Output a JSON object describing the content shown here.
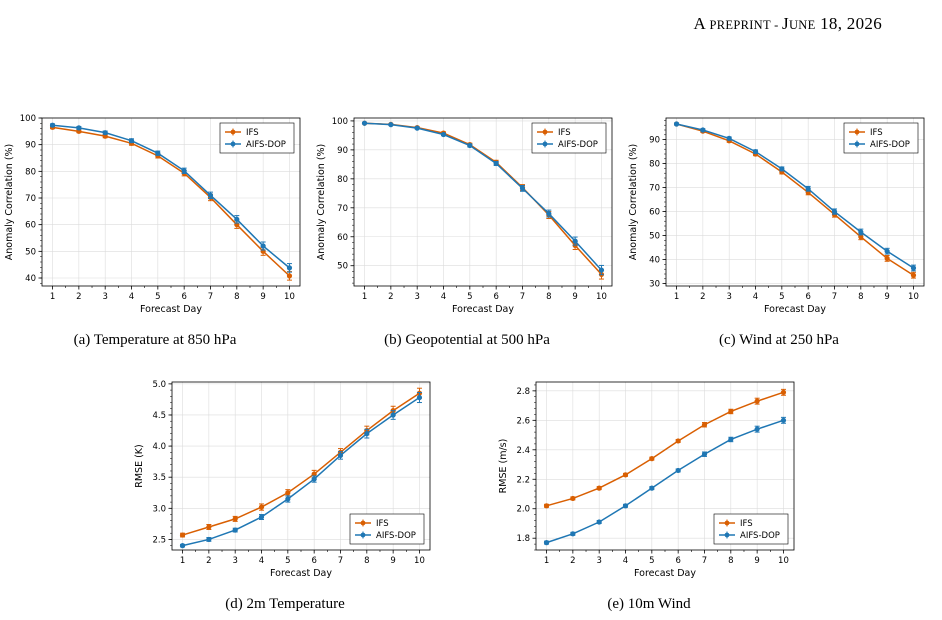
{
  "header": {
    "prefix_big": "A",
    "prefix_small": " PREPRINT - ",
    "date_big_1": "J",
    "date_small_1": "UNE",
    "date_rest": " 18, 2026"
  },
  "colors": {
    "ifs": "#d95f02",
    "aifs": "#1f77b4"
  },
  "chart_data": [
    {
      "type": "line",
      "caption": "(a) Temperature at 850 hPa",
      "xlabel": "Forecast Day",
      "ylabel": "Anomaly Correlation (%)",
      "x": [
        1,
        2,
        3,
        4,
        5,
        6,
        7,
        8,
        9,
        10
      ],
      "xlim": [
        0.6,
        10.4
      ],
      "ylim": [
        37,
        100
      ],
      "yticks": [
        40,
        50,
        60,
        70,
        80,
        90,
        100
      ],
      "ytick_labels": [
        "40",
        "50",
        "60",
        "70",
        "80",
        "90",
        "100"
      ],
      "legend": "top-right",
      "series": [
        {
          "name": "IFS",
          "color": "#d95f02",
          "values": [
            96.5,
            95.0,
            93.2,
            90.5,
            85.8,
            79.3,
            70.2,
            60.0,
            50.0,
            40.8
          ],
          "err": [
            0.5,
            0.5,
            0.6,
            0.7,
            0.8,
            1.0,
            1.2,
            1.4,
            1.5,
            1.6
          ]
        },
        {
          "name": "AIFS-DOP",
          "color": "#1f77b4",
          "values": [
            97.3,
            96.3,
            94.5,
            91.5,
            86.8,
            80.2,
            71.0,
            62.0,
            52.0,
            43.8
          ],
          "err": [
            0.5,
            0.5,
            0.6,
            0.7,
            0.8,
            1.0,
            1.2,
            1.4,
            1.5,
            1.6
          ]
        }
      ]
    },
    {
      "type": "line",
      "caption": "(b) Geopotential at 500 hPa",
      "xlabel": "Forecast Day",
      "ylabel": "Anomaly Correlation (%)",
      "x": [
        1,
        2,
        3,
        4,
        5,
        6,
        7,
        8,
        9,
        10
      ],
      "xlim": [
        0.6,
        10.4
      ],
      "ylim": [
        43,
        101
      ],
      "yticks": [
        50,
        60,
        70,
        80,
        90,
        100
      ],
      "ytick_labels": [
        "50",
        "60",
        "70",
        "80",
        "90",
        "100"
      ],
      "legend": "top-right",
      "series": [
        {
          "name": "IFS",
          "color": "#d95f02",
          "values": [
            99.2,
            98.8,
            97.7,
            95.8,
            91.8,
            85.7,
            77.0,
            67.5,
            57.0,
            47.0
          ],
          "err": [
            0.2,
            0.2,
            0.3,
            0.4,
            0.5,
            0.7,
            1.0,
            1.2,
            1.4,
            1.6
          ]
        },
        {
          "name": "AIFS-DOP",
          "color": "#1f77b4",
          "values": [
            99.2,
            98.7,
            97.5,
            95.3,
            91.5,
            85.3,
            76.7,
            68.0,
            58.5,
            48.5
          ],
          "err": [
            0.2,
            0.2,
            0.3,
            0.4,
            0.5,
            0.7,
            1.0,
            1.2,
            1.4,
            1.6
          ]
        }
      ]
    },
    {
      "type": "line",
      "caption": "(c) Wind at 250 hPa",
      "xlabel": "Forecast Day",
      "ylabel": "Anomaly Correlation (%)",
      "x": [
        1,
        2,
        3,
        4,
        5,
        6,
        7,
        8,
        9,
        10
      ],
      "xlim": [
        0.6,
        10.4
      ],
      "ylim": [
        29,
        99
      ],
      "yticks": [
        30,
        40,
        50,
        60,
        70,
        80,
        90
      ],
      "ytick_labels": [
        "30",
        "40",
        "50",
        "60",
        "70",
        "80",
        "90"
      ],
      "legend": "top-right",
      "series": [
        {
          "name": "IFS",
          "color": "#d95f02",
          "values": [
            96.5,
            93.5,
            89.5,
            84.0,
            76.5,
            68.0,
            58.8,
            49.5,
            40.5,
            33.5
          ],
          "err": [
            0.4,
            0.5,
            0.6,
            0.7,
            0.8,
            1.0,
            1.1,
            1.2,
            1.2,
            1.2
          ]
        },
        {
          "name": "AIFS-DOP",
          "color": "#1f77b4",
          "values": [
            96.5,
            94.0,
            90.5,
            85.0,
            77.8,
            69.5,
            60.0,
            51.5,
            43.5,
            36.5
          ],
          "err": [
            0.4,
            0.5,
            0.6,
            0.7,
            0.8,
            1.0,
            1.1,
            1.2,
            1.2,
            1.2
          ]
        }
      ]
    },
    {
      "type": "line",
      "caption": "(d) 2m Temperature",
      "xlabel": "Forecast Day",
      "ylabel": "RMSE (K)",
      "x": [
        1,
        2,
        3,
        4,
        5,
        6,
        7,
        8,
        9,
        10
      ],
      "xlim": [
        0.6,
        10.4
      ],
      "ylim": [
        2.33,
        5.03
      ],
      "yticks": [
        2.5,
        3.0,
        3.5,
        4.0,
        4.5,
        5.0
      ],
      "ytick_labels": [
        "2.5",
        "3.0",
        "3.5",
        "4.0",
        "4.5",
        "5.0"
      ],
      "legend": "bottom-right",
      "series": [
        {
          "name": "IFS",
          "color": "#d95f02",
          "values": [
            2.57,
            2.7,
            2.83,
            3.02,
            3.25,
            3.55,
            3.9,
            4.25,
            4.57,
            4.85
          ],
          "err": [
            0.03,
            0.04,
            0.04,
            0.05,
            0.05,
            0.06,
            0.06,
            0.07,
            0.07,
            0.08
          ]
        },
        {
          "name": "AIFS-DOP",
          "color": "#1f77b4",
          "values": [
            2.4,
            2.5,
            2.65,
            2.86,
            3.15,
            3.47,
            3.85,
            4.2,
            4.5,
            4.78
          ],
          "err": [
            0.02,
            0.03,
            0.03,
            0.04,
            0.05,
            0.05,
            0.06,
            0.07,
            0.07,
            0.08
          ]
        }
      ]
    },
    {
      "type": "line",
      "caption": "(e) 10m Wind",
      "xlabel": "Forecast Day",
      "ylabel": "RMSE (m/s)",
      "x": [
        1,
        2,
        3,
        4,
        5,
        6,
        7,
        8,
        9,
        10
      ],
      "xlim": [
        0.6,
        10.4
      ],
      "ylim": [
        1.72,
        2.86
      ],
      "yticks": [
        1.8,
        2.0,
        2.2,
        2.4,
        2.6,
        2.8
      ],
      "ytick_labels": [
        "1.8",
        "2.0",
        "2.2",
        "2.4",
        "2.6",
        "2.8"
      ],
      "legend": "bottom-right",
      "series": [
        {
          "name": "IFS",
          "color": "#d95f02",
          "values": [
            2.02,
            2.07,
            2.14,
            2.23,
            2.34,
            2.46,
            2.57,
            2.66,
            2.73,
            2.79
          ],
          "err": [
            0.01,
            0.01,
            0.01,
            0.01,
            0.01,
            0.01,
            0.015,
            0.015,
            0.02,
            0.02
          ]
        },
        {
          "name": "AIFS-DOP",
          "color": "#1f77b4",
          "values": [
            1.77,
            1.83,
            1.91,
            2.02,
            2.14,
            2.26,
            2.37,
            2.47,
            2.54,
            2.6
          ],
          "err": [
            0.01,
            0.01,
            0.01,
            0.01,
            0.01,
            0.01,
            0.015,
            0.015,
            0.02,
            0.02
          ]
        }
      ]
    }
  ]
}
